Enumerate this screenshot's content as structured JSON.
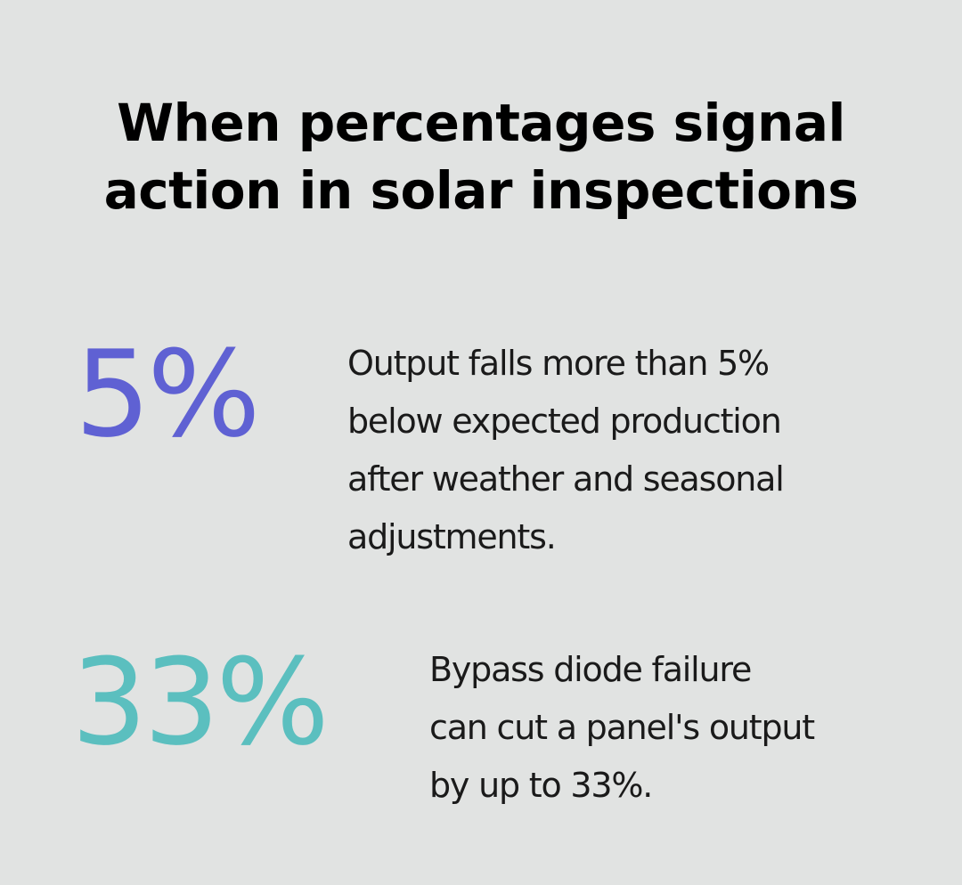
{
  "title_lines": [
    "When percentages signal",
    "action in solar inspections"
  ],
  "stats": [
    {
      "value": "5%",
      "color": "#5f61d3",
      "description_lines": [
        "Output falls more than 5%",
        "below expected production",
        "after weather and seasonal",
        "adjustments."
      ]
    },
    {
      "value": "33%",
      "color": "#5bbfbf",
      "description_lines": [
        "Bypass diode failure",
        "can cut a panel's output",
        "by up to 33%."
      ]
    }
  ]
}
